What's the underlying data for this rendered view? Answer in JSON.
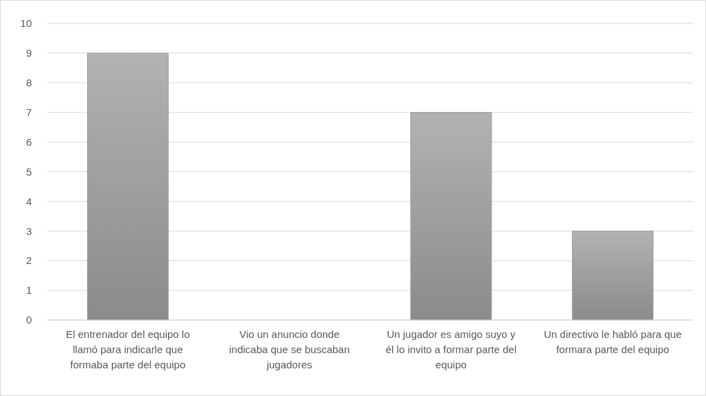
{
  "chart_data": {
    "type": "bar",
    "categories": [
      "El entrenador del equipo lo llamó para indicarle que formaba parte del equipo",
      "Vio un anuncio donde indicaba que se buscaban jugadores",
      "Un jugador es amigo suyo y él lo invito a formar parte del equipo",
      "Un directivo le habló para que formara parte del equipo"
    ],
    "values": [
      9,
      0,
      7,
      3
    ],
    "color": "#9d9d9d",
    "ylim": [
      0,
      10
    ],
    "yticks": [
      0,
      1,
      2,
      3,
      4,
      5,
      6,
      7,
      8,
      9,
      10
    ],
    "grid": "y"
  }
}
